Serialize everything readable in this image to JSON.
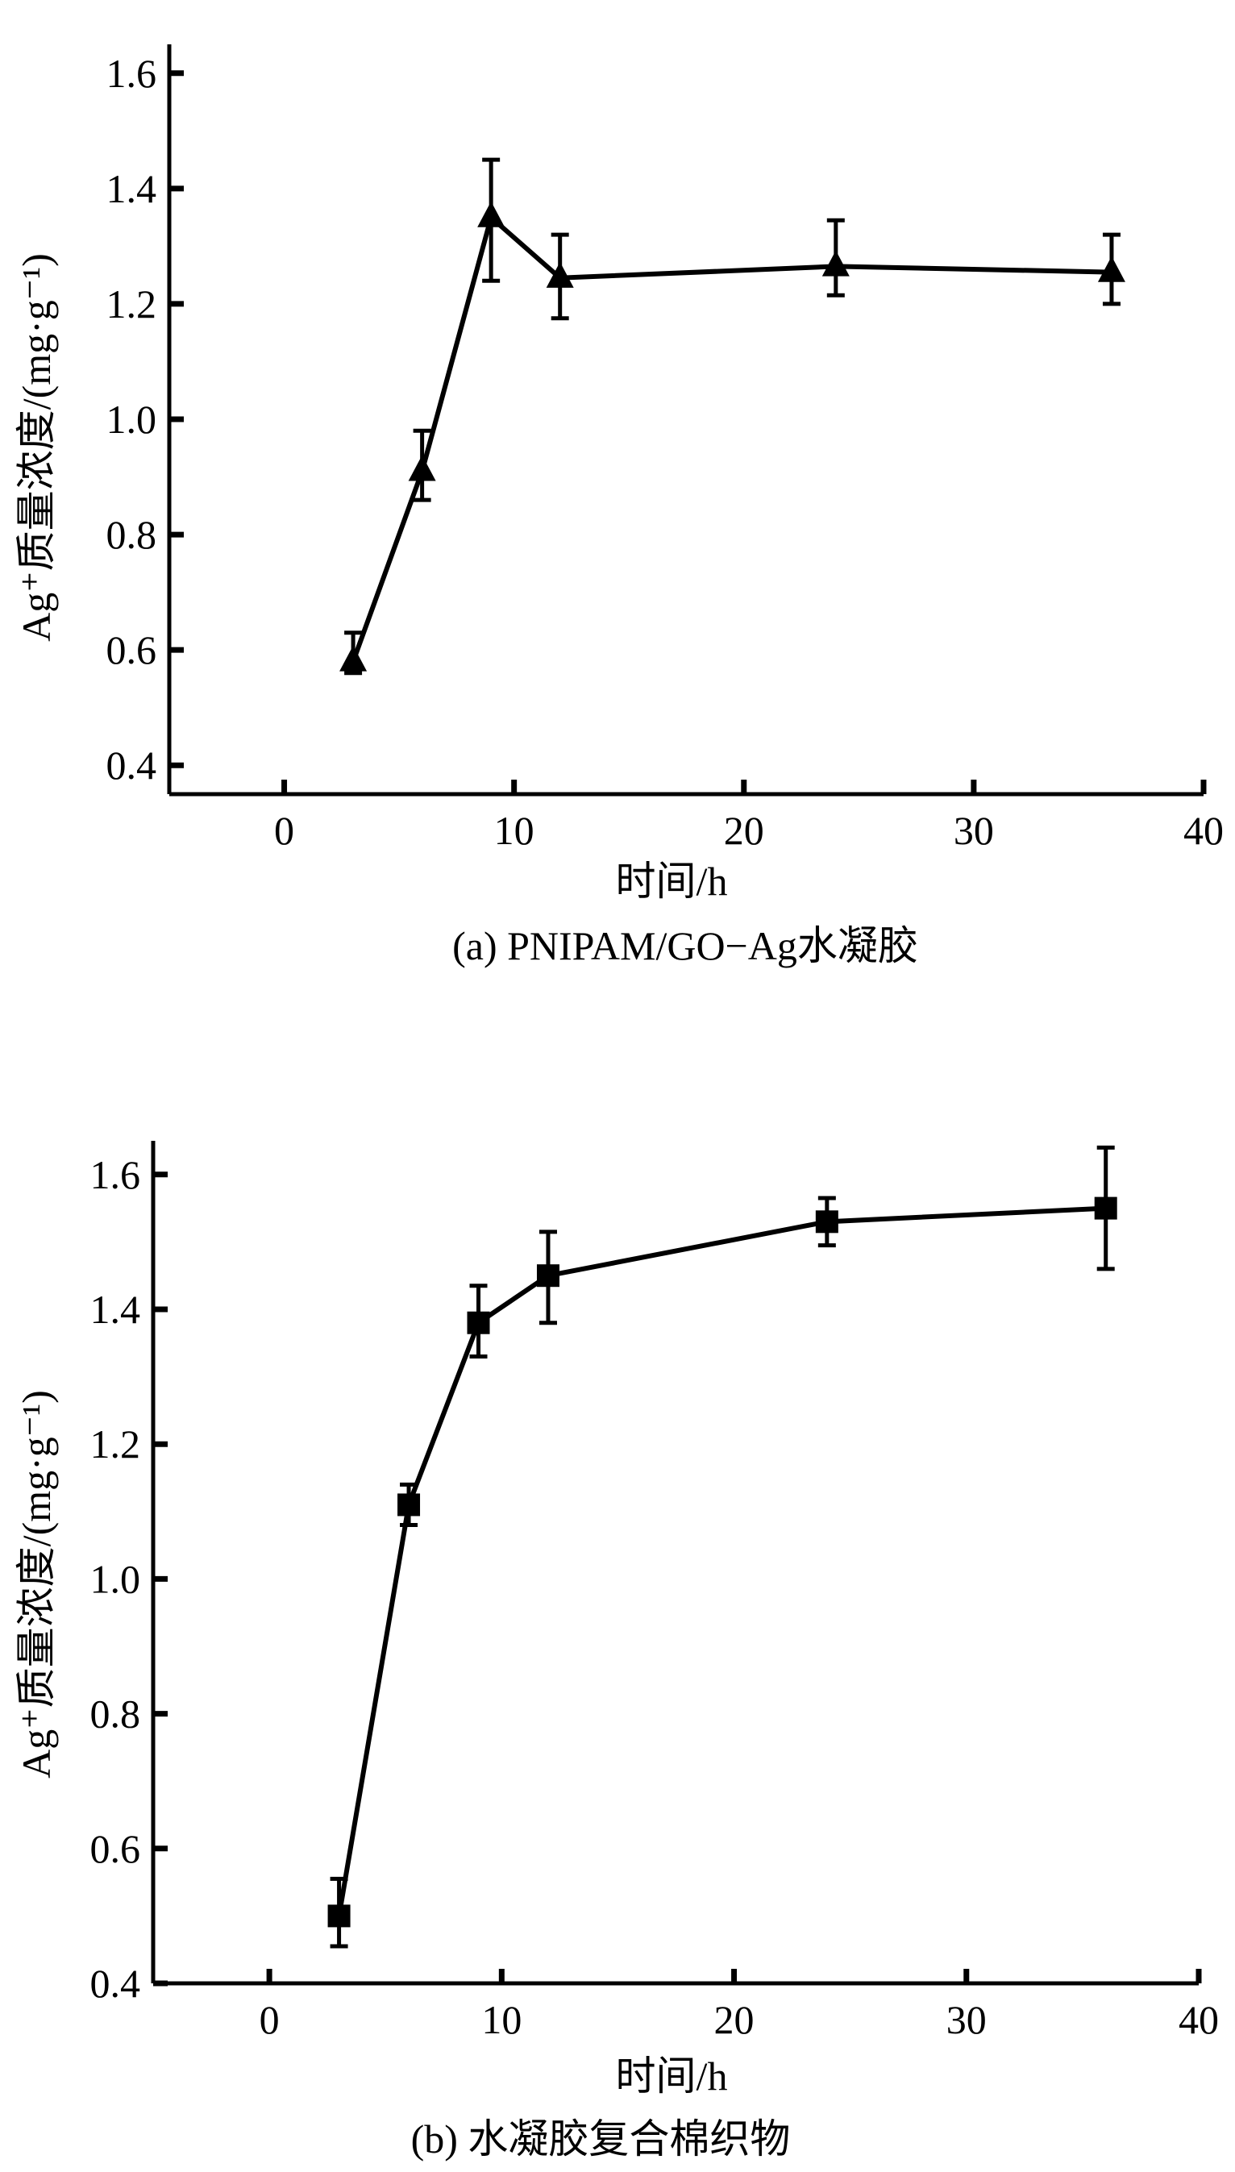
{
  "chart_data": [
    {
      "type": "line",
      "panel": "a",
      "caption": "(a) PNIPAM/GO−Ag水凝胶",
      "xlabel": "时间/h",
      "ylabel": "Ag⁺质量浓度/(mg·g⁻¹)",
      "xlim": [
        -5,
        40
      ],
      "ylim": [
        0.35,
        1.65
      ],
      "xticks": [
        0,
        10,
        20,
        30,
        40
      ],
      "yticks": [
        0.4,
        0.6,
        0.8,
        1.0,
        1.2,
        1.4,
        1.6
      ],
      "xtick_labels": [
        "0",
        "10",
        "20",
        "30",
        "40"
      ],
      "ytick_labels": [
        "0.4",
        "0.6",
        "0.8",
        "1.0",
        "1.2",
        "1.4",
        "1.6"
      ],
      "marker": "triangle",
      "grid": false,
      "series": [
        {
          "x": [
            3,
            6,
            9,
            12,
            24,
            36
          ],
          "y": [
            0.58,
            0.91,
            1.35,
            1.245,
            1.265,
            1.255
          ],
          "err_low": [
            0.56,
            0.86,
            1.24,
            1.175,
            1.215,
            1.2
          ],
          "err_high": [
            0.63,
            0.98,
            1.45,
            1.32,
            1.345,
            1.32
          ]
        }
      ]
    },
    {
      "type": "line",
      "panel": "b",
      "caption": "(b) 水凝胶复合棉织物",
      "xlabel": "时间/h",
      "ylabel": "Ag⁺质量浓度/(mg·g⁻¹)",
      "xlim": [
        -5,
        40
      ],
      "ylim": [
        0.4,
        1.65
      ],
      "xticks": [
        0,
        10,
        20,
        30,
        40
      ],
      "yticks": [
        0.4,
        0.6,
        0.8,
        1.0,
        1.2,
        1.4,
        1.6
      ],
      "xtick_labels": [
        "0",
        "10",
        "20",
        "30",
        "40"
      ],
      "ytick_labels": [
        "0.4",
        "0.6",
        "0.8",
        "1.0",
        "1.2",
        "1.4",
        "1.6"
      ],
      "marker": "square",
      "grid": false,
      "series": [
        {
          "x": [
            3,
            6,
            9,
            12,
            24,
            36
          ],
          "y": [
            0.5,
            1.11,
            1.38,
            1.45,
            1.53,
            1.55
          ],
          "err_low": [
            0.455,
            1.08,
            1.33,
            1.38,
            1.495,
            1.46
          ],
          "err_high": [
            0.555,
            1.14,
            1.435,
            1.515,
            1.565,
            1.64
          ]
        }
      ]
    }
  ]
}
